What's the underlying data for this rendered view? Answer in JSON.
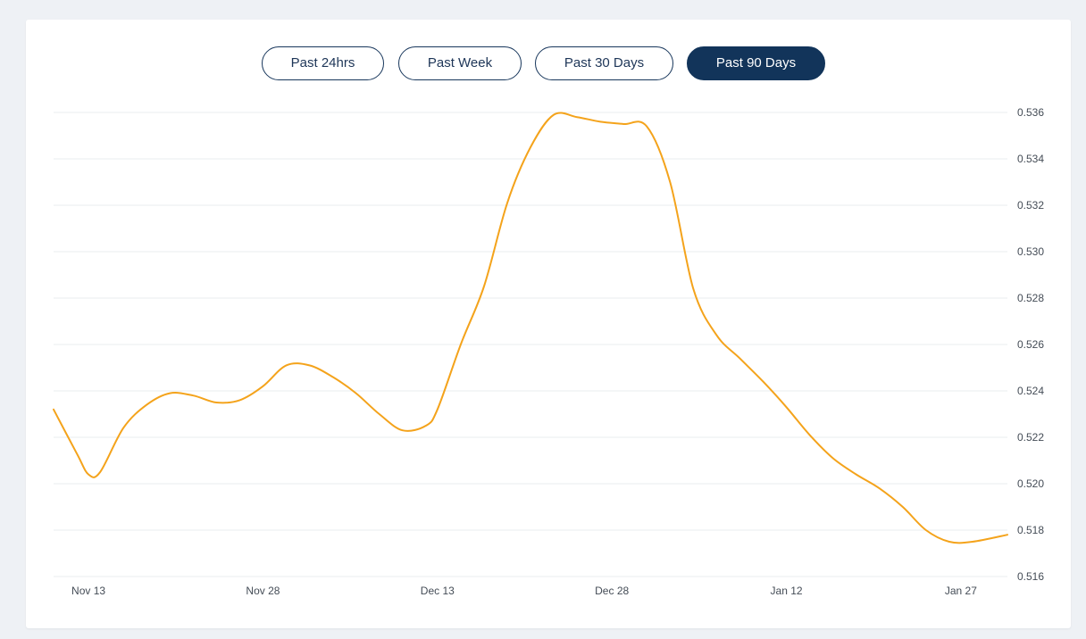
{
  "range_tabs": [
    {
      "label": "Past 24hrs",
      "active": false
    },
    {
      "label": "Past Week",
      "active": false
    },
    {
      "label": "Past 30 Days",
      "active": false
    },
    {
      "label": "Past 90 Days",
      "active": true
    }
  ],
  "colors": {
    "line": "#f4a31b",
    "gridline": "#e9ecef",
    "active_tab": "#12345a",
    "tab_border": "#18375c",
    "page_bg": "#eef1f5"
  },
  "chart_data": {
    "type": "line",
    "title": "",
    "xlabel": "",
    "ylabel": "",
    "grid": true,
    "y_axis_position": "right",
    "ylim": [
      0.516,
      0.536
    ],
    "xlim": [
      "2023-11-10",
      "2024-01-31"
    ],
    "x_ticks": [
      "Nov 13",
      "Nov 28",
      "Dec 13",
      "Dec 28",
      "Jan 12",
      "Jan 27"
    ],
    "x_tick_dates": [
      "2023-11-13",
      "2023-11-28",
      "2023-12-13",
      "2023-12-28",
      "2024-01-12",
      "2024-01-27"
    ],
    "y_ticks": [
      "0.536",
      "0.534",
      "0.532",
      "0.530",
      "0.528",
      "0.526",
      "0.524",
      "0.522",
      "0.520",
      "0.518",
      "0.516"
    ],
    "series": [
      {
        "x": [
          "2023-11-10",
          "2023-11-12",
          "2023-11-13",
          "2023-11-14",
          "2023-11-16",
          "2023-11-18",
          "2023-11-20",
          "2023-11-22",
          "2023-11-24",
          "2023-11-26",
          "2023-11-28",
          "2023-11-30",
          "2023-12-02",
          "2023-12-04",
          "2023-12-06",
          "2023-12-08",
          "2023-12-10",
          "2023-12-12",
          "2023-12-13",
          "2023-12-15",
          "2023-12-17",
          "2023-12-19",
          "2023-12-21",
          "2023-12-23",
          "2023-12-25",
          "2023-12-27",
          "2023-12-29",
          "2023-12-31",
          "2024-01-02",
          "2024-01-04",
          "2024-01-06",
          "2024-01-08",
          "2024-01-10",
          "2024-01-12",
          "2024-01-14",
          "2024-01-16",
          "2024-01-18",
          "2024-01-20",
          "2024-01-22",
          "2024-01-24",
          "2024-01-26",
          "2024-01-28",
          "2024-01-31"
        ],
        "values": [
          0.5232,
          0.5213,
          0.5204,
          0.5205,
          0.5224,
          0.5234,
          0.5239,
          0.5238,
          0.5235,
          0.5236,
          0.5242,
          0.5251,
          0.5251,
          0.5246,
          0.5239,
          0.523,
          0.5223,
          0.5225,
          0.5232,
          0.526,
          0.5285,
          0.5321,
          0.5345,
          0.5359,
          0.5358,
          0.5356,
          0.5355,
          0.5354,
          0.533,
          0.5284,
          0.5264,
          0.5254,
          0.5244,
          0.5233,
          0.5221,
          0.5211,
          0.5204,
          0.5198,
          0.519,
          0.518,
          0.5175,
          0.5175,
          0.5178
        ]
      }
    ]
  }
}
